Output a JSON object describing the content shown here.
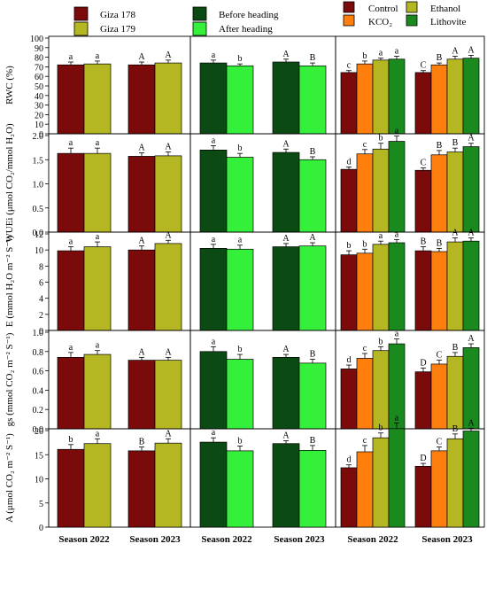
{
  "legend": [
    {
      "label": "Giza 178",
      "color": "#7b0a0a"
    },
    {
      "label": "Giza 179",
      "color": "#b5b722"
    },
    {
      "label": "Before heading",
      "color": "#0b4a12"
    },
    {
      "label": "After heading",
      "color": "#34f03a"
    },
    {
      "label": "Control",
      "color": "#7b0a0a"
    },
    {
      "label": "KCO₂",
      "color": "#ff7f0e"
    },
    {
      "label": "Ethanol",
      "color": "#b5b722"
    },
    {
      "label": "Lithovite",
      "color": "#1a8a1f"
    }
  ],
  "seasons": [
    "Season 2022",
    "Season 2023"
  ],
  "chart_data": {
    "type": "bar",
    "categories": [
      "Season 2022",
      "Season 2023"
    ],
    "column_groups": [
      {
        "factor": "cultivar",
        "series": [
          "Giza 178",
          "Giza 179"
        ]
      },
      {
        "factor": "timing",
        "series": [
          "Before heading",
          "After heading"
        ]
      },
      {
        "factor": "treatment",
        "series": [
          "Control",
          "KCO₂",
          "Ethanol",
          "Lithovite"
        ]
      }
    ],
    "rows": [
      {
        "ylabel": "RWC (%)",
        "ylim": [
          0,
          100
        ],
        "ticks": [
          "0",
          "10",
          "20",
          "30",
          "40",
          "50",
          "60",
          "70",
          "80",
          "90",
          "100"
        ],
        "panels": [
          {
            "values": [
              [
                72,
                73
              ],
              [
                72,
                74
              ]
            ],
            "errors": [
              [
                3,
                3
              ],
              [
                3,
                3
              ]
            ],
            "letters": [
              [
                "a",
                "a"
              ],
              [
                "A",
                "A"
              ]
            ]
          },
          {
            "values": [
              [
                74,
                71
              ],
              [
                75,
                71
              ]
            ],
            "errors": [
              [
                3,
                2
              ],
              [
                3,
                3
              ]
            ],
            "letters": [
              [
                "a",
                "b"
              ],
              [
                "A",
                "B"
              ]
            ]
          },
          {
            "values": [
              [
                64,
                73,
                77,
                78
              ],
              [
                64,
                72,
                78,
                79
              ]
            ],
            "errors": [
              [
                2,
                3,
                2,
                3
              ],
              [
                2,
                2,
                3,
                3
              ]
            ],
            "letters": [
              [
                "c",
                "b",
                "a",
                "a"
              ],
              [
                "C",
                "B",
                "A",
                "A"
              ]
            ]
          }
        ]
      },
      {
        "ylabel": "WUEi (μmol CO₂/mmol H₂O)",
        "ylim": [
          0,
          2.0
        ],
        "ticks": [
          "0.0",
          "0.5",
          "1.0",
          "1.5",
          "2.0"
        ],
        "panels": [
          {
            "values": [
              [
                1.63,
                1.63
              ],
              [
                1.57,
                1.58
              ]
            ],
            "errors": [
              [
                0.11,
                0.11
              ],
              [
                0.07,
                0.08
              ]
            ],
            "letters": [
              [
                "a",
                "a"
              ],
              [
                "A",
                "A"
              ]
            ]
          },
          {
            "values": [
              [
                1.7,
                1.55
              ],
              [
                1.65,
                1.5
              ]
            ],
            "errors": [
              [
                0.09,
                0.08
              ],
              [
                0.07,
                0.06
              ]
            ],
            "letters": [
              [
                "a",
                "b"
              ],
              [
                "A",
                "B"
              ]
            ]
          },
          {
            "values": [
              [
                1.3,
                1.62,
                1.72,
                1.88
              ],
              [
                1.28,
                1.6,
                1.66,
                1.77
              ]
            ],
            "errors": [
              [
                0.05,
                0.09,
                0.12,
                0.11
              ],
              [
                0.05,
                0.09,
                0.08,
                0.07
              ]
            ],
            "letters": [
              [
                "d",
                "c",
                "b",
                "a"
              ],
              [
                "C",
                "B",
                "B",
                "A"
              ]
            ]
          }
        ]
      },
      {
        "ylabel": "E (mmol H₂O m⁻² S⁻¹)",
        "ylim": [
          0,
          12
        ],
        "ticks": [
          "0",
          "2",
          "4",
          "6",
          "8",
          "10",
          "12"
        ],
        "panels": [
          {
            "values": [
              [
                9.9,
                10.4
              ],
              [
                10.0,
                10.8
              ]
            ],
            "errors": [
              [
                0.5,
                0.6
              ],
              [
                0.5,
                0.4
              ]
            ],
            "letters": [
              [
                "a",
                "a"
              ],
              [
                "A",
                "A"
              ]
            ]
          },
          {
            "values": [
              [
                10.2,
                10.1
              ],
              [
                10.4,
                10.5
              ]
            ],
            "errors": [
              [
                0.5,
                0.5
              ],
              [
                0.4,
                0.4
              ]
            ],
            "letters": [
              [
                "a",
                "a"
              ],
              [
                "A",
                "A"
              ]
            ]
          },
          {
            "values": [
              [
                9.4,
                9.6,
                10.7,
                10.9
              ],
              [
                9.9,
                9.8,
                11.0,
                11.1
              ]
            ],
            "errors": [
              [
                0.5,
                0.5,
                0.4,
                0.4
              ],
              [
                0.5,
                0.4,
                0.5,
                0.4
              ]
            ],
            "letters": [
              [
                "b",
                "b",
                "a",
                "a"
              ],
              [
                "B",
                "B",
                "A",
                "A"
              ]
            ]
          }
        ]
      },
      {
        "ylabel": "gs (mmol CO₂ m⁻² S⁻¹)",
        "ylim": [
          0,
          1.0
        ],
        "ticks": [
          "0.0",
          "0.2",
          "0.4",
          "0.6",
          "0.8",
          "1.0"
        ],
        "panels": [
          {
            "values": [
              [
                0.74,
                0.77
              ],
              [
                0.71,
                0.71
              ]
            ],
            "errors": [
              [
                0.05,
                0.04
              ],
              [
                0.03,
                0.03
              ]
            ],
            "letters": [
              [
                "a",
                "a"
              ],
              [
                "A",
                "A"
              ]
            ]
          },
          {
            "values": [
              [
                0.8,
                0.72
              ],
              [
                0.74,
                0.68
              ]
            ],
            "errors": [
              [
                0.05,
                0.05
              ],
              [
                0.03,
                0.04
              ]
            ],
            "letters": [
              [
                "a",
                "b"
              ],
              [
                "A",
                "B"
              ]
            ]
          },
          {
            "values": [
              [
                0.62,
                0.73,
                0.81,
                0.88
              ],
              [
                0.59,
                0.67,
                0.75,
                0.84
              ]
            ],
            "errors": [
              [
                0.04,
                0.05,
                0.04,
                0.05
              ],
              [
                0.04,
                0.04,
                0.04,
                0.04
              ]
            ],
            "letters": [
              [
                "d",
                "c",
                "b",
                "a"
              ],
              [
                "D",
                "C",
                "B",
                "A"
              ]
            ]
          }
        ]
      },
      {
        "ylabel": "A (μmol CO₂ m⁻² S⁻¹)",
        "ylim": [
          0,
          20
        ],
        "ticks": [
          "0",
          "5",
          "10",
          "15",
          "20"
        ],
        "panels": [
          {
            "values": [
              [
                16.1,
                17.3
              ],
              [
                15.8,
                17.4
              ]
            ],
            "errors": [
              [
                1.0,
                1.0
              ],
              [
                0.8,
                0.9
              ]
            ],
            "letters": [
              [
                "b",
                "a"
              ],
              [
                "B",
                "A"
              ]
            ]
          },
          {
            "values": [
              [
                17.6,
                15.8
              ],
              [
                17.3,
                15.9
              ]
            ],
            "errors": [
              [
                0.9,
                1.0
              ],
              [
                0.6,
                1.0
              ]
            ],
            "letters": [
              [
                "a",
                "b"
              ],
              [
                "A",
                "B"
              ]
            ]
          },
          {
            "values": [
              [
                12.3,
                15.6,
                18.5,
                20.4
              ],
              [
                12.6,
                15.8,
                18.3,
                19.9
              ]
            ],
            "errors": [
              [
                0.6,
                1.3,
                1.0,
                1.2
              ],
              [
                0.6,
                0.8,
                1.0,
                0.6
              ]
            ],
            "letters": [
              [
                "d",
                "c",
                "b",
                "a"
              ],
              [
                "D",
                "C",
                "B",
                "A"
              ]
            ]
          }
        ]
      }
    ]
  }
}
